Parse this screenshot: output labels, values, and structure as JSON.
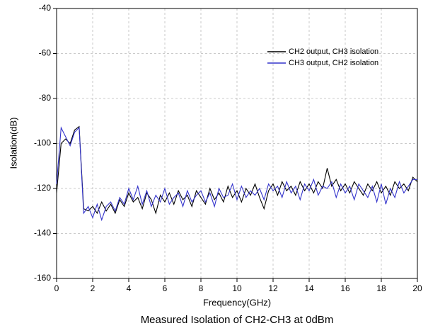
{
  "chart_data": {
    "type": "line",
    "title": "Measured Isolation of CH2-CH3 at 0dBm",
    "x_label": "Frequency(GHz)",
    "y_label": "Isolation(dB)",
    "x": [
      0,
      0.25,
      0.5,
      0.75,
      1,
      1.25,
      1.5,
      1.75,
      2,
      2.25,
      2.5,
      2.75,
      3,
      3.25,
      3.5,
      3.75,
      4,
      4.25,
      4.5,
      4.75,
      5,
      5.25,
      5.5,
      5.75,
      6,
      6.25,
      6.5,
      6.75,
      7,
      7.25,
      7.5,
      7.75,
      8,
      8.25,
      8.5,
      8.75,
      9,
      9.25,
      9.5,
      9.75,
      10,
      10.25,
      10.5,
      10.75,
      11,
      11.25,
      11.5,
      11.75,
      12,
      12.25,
      12.5,
      12.75,
      13,
      13.25,
      13.5,
      13.75,
      14,
      14.25,
      14.5,
      14.75,
      15,
      15.25,
      15.5,
      15.75,
      16,
      16.25,
      16.5,
      16.75,
      17,
      17.25,
      17.5,
      17.75,
      18,
      18.25,
      18.5,
      18.75,
      19,
      19.25,
      19.5,
      19.75,
      20
    ],
    "series": [
      {
        "name": "CH2 output, CH3 isolation",
        "color": "#000000",
        "values": [
          -122,
          -100,
          -98,
          -100,
          -94,
          -92.5,
          -129,
          -130,
          -128,
          -131,
          -126,
          -130,
          -127,
          -131,
          -125,
          -128,
          -122,
          -126,
          -124,
          -129,
          -122,
          -125,
          -131,
          -123,
          -126,
          -122,
          -127,
          -121,
          -125,
          -123,
          -128,
          -121,
          -124,
          -127,
          -120,
          -125,
          -122,
          -126,
          -119,
          -124,
          -121,
          -126,
          -120,
          -123,
          -118,
          -124,
          -129,
          -121,
          -118,
          -123,
          -117,
          -121,
          -119,
          -123,
          -117,
          -121,
          -118,
          -122,
          -117,
          -120,
          -111,
          -119,
          -116,
          -121,
          -118,
          -122,
          -117,
          -120,
          -123,
          -118,
          -121,
          -117,
          -122,
          -119,
          -123,
          -117,
          -120,
          -118,
          -121,
          -115,
          -117
        ]
      },
      {
        "name": "CH3 output, CH2 isolation",
        "color": "#3333cc",
        "values": [
          -118,
          -93,
          -97,
          -101,
          -95,
          -93,
          -131,
          -128,
          -133,
          -127,
          -134,
          -128,
          -126,
          -130,
          -124,
          -127,
          -120,
          -125,
          -119,
          -127,
          -121,
          -128,
          -123,
          -126,
          -120,
          -127,
          -124,
          -122,
          -128,
          -121,
          -126,
          -123,
          -121,
          -126,
          -122,
          -128,
          -120,
          -124,
          -123,
          -118,
          -125,
          -119,
          -124,
          -121,
          -123,
          -120,
          -125,
          -118,
          -121,
          -119,
          -124,
          -117,
          -122,
          -119,
          -125,
          -118,
          -121,
          -116,
          -123,
          -119,
          -120,
          -117,
          -124,
          -118,
          -122,
          -119,
          -125,
          -118,
          -121,
          -124,
          -119,
          -126,
          -118,
          -127,
          -120,
          -124,
          -117,
          -122,
          -119,
          -116,
          -116
        ]
      }
    ],
    "xlim": [
      0,
      20
    ],
    "xticks": [
      0,
      2,
      4,
      6,
      8,
      10,
      12,
      14,
      16,
      18,
      20
    ],
    "ylim": [
      -160,
      -40
    ],
    "yticks": [
      -160,
      -140,
      -120,
      -100,
      -80,
      -60,
      -40
    ],
    "grid": true,
    "legend": "upper right"
  }
}
